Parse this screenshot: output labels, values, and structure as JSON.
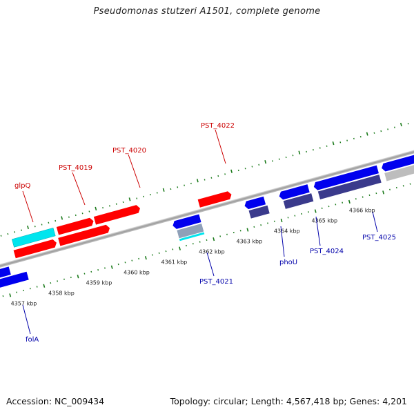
{
  "title": "Pseudomonas stutzeri A1501, complete genome",
  "accession_text": "Accession: NC_009434",
  "topology_text": "Topology: circular; Length: 4,567,418 bp; Genes: 4,201",
  "colors": {
    "forward_gene": "#ff0000",
    "reverse_gene": "#0000ee",
    "rna_gene": "#00e5ee",
    "operon_gene": "#3a3a8c",
    "backbone": "#888888",
    "tick": "#1a7a1a",
    "label_forward": "#cc0000",
    "label_reverse": "#0000aa"
  },
  "scale_labels": [
    "4357 kbp",
    "4358 kbp",
    "4359 kbp",
    "4360 kbp",
    "4361 kbp",
    "4362 kbp",
    "4363 kbp",
    "4364 kbp",
    "4365 kbp",
    "4366 kbp"
  ],
  "gene_labels": {
    "glpQ": "glpQ",
    "PST_4019": "PST_4019",
    "PST_4020": "PST_4020",
    "PST_4022": "PST_4022",
    "PST_4021": "PST_4021",
    "phoU": "phoU",
    "PST_4024": "PST_4024",
    "PST_4025": "PST_4025",
    "folA": "folA"
  }
}
